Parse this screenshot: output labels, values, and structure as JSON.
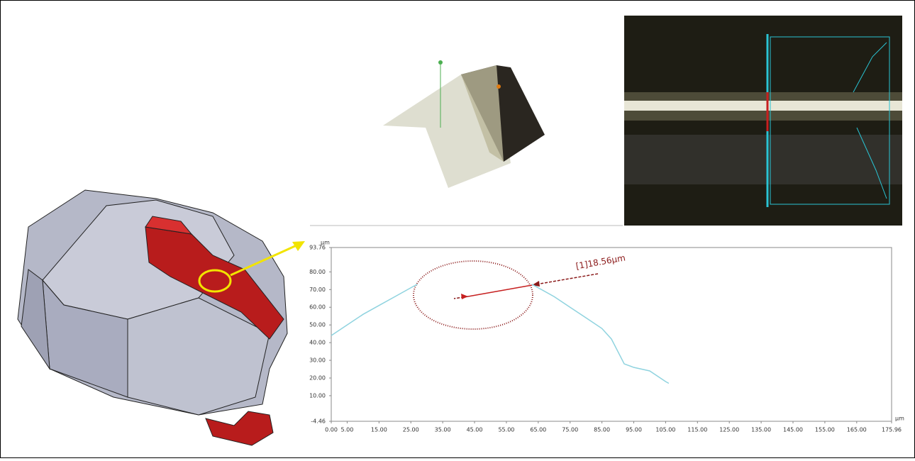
{
  "chart_data": {
    "type": "line",
    "x_unit": "µm",
    "y_unit": "µm",
    "annotation": "[1]18.56µm",
    "xlim": [
      0,
      175.96
    ],
    "ylim": [
      -4.46,
      93.76
    ],
    "xticks": [
      {
        "value": 0,
        "label": "0.00"
      },
      {
        "value": 5,
        "label": "5.00"
      },
      {
        "value": 15,
        "label": "15.00"
      },
      {
        "value": 25,
        "label": "25.00"
      },
      {
        "value": 35,
        "label": "35.00"
      },
      {
        "value": 45,
        "label": "45.00"
      },
      {
        "value": 55,
        "label": "55.00"
      },
      {
        "value": 65,
        "label": "65.00"
      },
      {
        "value": 75,
        "label": "75.00"
      },
      {
        "value": 85,
        "label": "85.00"
      },
      {
        "value": 95,
        "label": "95.00"
      },
      {
        "value": 105,
        "label": "105.00"
      },
      {
        "value": 115,
        "label": "115.00"
      },
      {
        "value": 125,
        "label": "125.00"
      },
      {
        "value": 135,
        "label": "135.00"
      },
      {
        "value": 145,
        "label": "145.00"
      },
      {
        "value": 155,
        "label": "155.00"
      },
      {
        "value": 165,
        "label": "165.00"
      },
      {
        "value": 175.96,
        "label": "175.96"
      }
    ],
    "yticks": [
      {
        "value": -4.46,
        "label": "-4.46"
      },
      {
        "value": 10,
        "label": "10.00"
      },
      {
        "value": 20,
        "label": "20.00"
      },
      {
        "value": 30,
        "label": "30.00"
      },
      {
        "value": 40,
        "label": "40.00"
      },
      {
        "value": 50,
        "label": "50.00"
      },
      {
        "value": 60,
        "label": "60.00"
      },
      {
        "value": 70,
        "label": "70.00"
      },
      {
        "value": 80,
        "label": "80.00"
      },
      {
        "value": 93.76,
        "label": "93.76"
      }
    ],
    "x": [
      0,
      5,
      10,
      15,
      20,
      25,
      27,
      45,
      63,
      70,
      75,
      80,
      85,
      88,
      90,
      92,
      95,
      100,
      105,
      106
    ],
    "series": [
      {
        "color": "#8fd3df",
        "values": [
          44,
          50,
          56,
          61,
          66,
          71,
          73,
          null,
          73,
          66,
          60,
          54,
          48,
          42,
          35,
          28,
          26,
          24,
          18,
          17
        ]
      }
    ]
  }
}
